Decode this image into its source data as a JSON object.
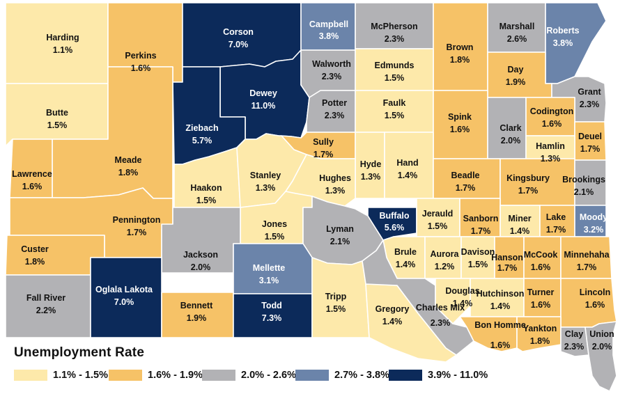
{
  "legend": {
    "title": "Unemployment Rate",
    "bins": [
      {
        "label": "1.1% - 1.5%",
        "color": "#fde9aa"
      },
      {
        "label": "1.6% - 1.9%",
        "color": "#f6c267"
      },
      {
        "label": "2.0% - 2.6%",
        "color": "#b2b2b5"
      },
      {
        "label": "2.7% - 3.8%",
        "color": "#6b84aa"
      },
      {
        "label": "3.9% - 11.0%",
        "color": "#0c2a5a"
      }
    ]
  },
  "counties": [
    {
      "id": "harding",
      "name": "Harding",
      "rate": "1.1%",
      "bin": 0
    },
    {
      "id": "perkins",
      "name": "Perkins",
      "rate": "1.6%",
      "bin": 1
    },
    {
      "id": "corson",
      "name": "Corson",
      "rate": "7.0%",
      "bin": 4
    },
    {
      "id": "campbell",
      "name": "Campbell",
      "rate": "3.8%",
      "bin": 3
    },
    {
      "id": "mcpherson",
      "name": "McPherson",
      "rate": "2.3%",
      "bin": 2
    },
    {
      "id": "brown",
      "name": "Brown",
      "rate": "1.8%",
      "bin": 1
    },
    {
      "id": "marshall",
      "name": "Marshall",
      "rate": "2.6%",
      "bin": 2
    },
    {
      "id": "roberts",
      "name": "Roberts",
      "rate": "3.8%",
      "bin": 3
    },
    {
      "id": "butte",
      "name": "Butte",
      "rate": "1.5%",
      "bin": 0
    },
    {
      "id": "dewey",
      "name": "Dewey",
      "rate": "11.0%",
      "bin": 4
    },
    {
      "id": "ziebach",
      "name": "Ziebach",
      "rate": "5.7%",
      "bin": 4
    },
    {
      "id": "walworth",
      "name": "Walworth",
      "rate": "2.3%",
      "bin": 2
    },
    {
      "id": "edmunds",
      "name": "Edmunds",
      "rate": "1.5%",
      "bin": 0
    },
    {
      "id": "day",
      "name": "Day",
      "rate": "1.9%",
      "bin": 1
    },
    {
      "id": "grant",
      "name": "Grant",
      "rate": "2.3%",
      "bin": 2
    },
    {
      "id": "potter",
      "name": "Potter",
      "rate": "2.3%",
      "bin": 2
    },
    {
      "id": "faulk",
      "name": "Faulk",
      "rate": "1.5%",
      "bin": 0
    },
    {
      "id": "spink",
      "name": "Spink",
      "rate": "1.6%",
      "bin": 1
    },
    {
      "id": "clark",
      "name": "Clark",
      "rate": "2.0%",
      "bin": 2
    },
    {
      "id": "codington",
      "name": "Codington",
      "rate": "1.6%",
      "bin": 1
    },
    {
      "id": "deuel",
      "name": "Deuel",
      "rate": "1.7%",
      "bin": 1
    },
    {
      "id": "hamlin",
      "name": "Hamlin",
      "rate": "1.3%",
      "bin": 0
    },
    {
      "id": "meade",
      "name": "Meade",
      "rate": "1.8%",
      "bin": 1
    },
    {
      "id": "lawrence",
      "name": "Lawrence",
      "rate": "1.6%",
      "bin": 1
    },
    {
      "id": "sully",
      "name": "Sully",
      "rate": "1.7%",
      "bin": 1
    },
    {
      "id": "hyde",
      "name": "Hyde",
      "rate": "1.3%",
      "bin": 0
    },
    {
      "id": "hand",
      "name": "Hand",
      "rate": "1.4%",
      "bin": 0
    },
    {
      "id": "beadle",
      "name": "Beadle",
      "rate": "1.7%",
      "bin": 1
    },
    {
      "id": "kingsbury",
      "name": "Kingsbury",
      "rate": "1.7%",
      "bin": 1
    },
    {
      "id": "brookings",
      "name": "Brookings",
      "rate": "2.1%",
      "bin": 2
    },
    {
      "id": "haakon",
      "name": "Haakon",
      "rate": "1.5%",
      "bin": 0
    },
    {
      "id": "stanley",
      "name": "Stanley",
      "rate": "1.3%",
      "bin": 0
    },
    {
      "id": "hughes",
      "name": "Hughes",
      "rate": "1.3%",
      "bin": 0
    },
    {
      "id": "pennington",
      "name": "Pennington",
      "rate": "1.7%",
      "bin": 1
    },
    {
      "id": "jones",
      "name": "Jones",
      "rate": "1.5%",
      "bin": 0
    },
    {
      "id": "lyman",
      "name": "Lyman",
      "rate": "2.1%",
      "bin": 2
    },
    {
      "id": "buffalo",
      "name": "Buffalo",
      "rate": "5.6%",
      "bin": 4
    },
    {
      "id": "jerauld",
      "name": "Jerauld",
      "rate": "1.5%",
      "bin": 0
    },
    {
      "id": "sanborn",
      "name": "Sanborn",
      "rate": "1.7%",
      "bin": 1
    },
    {
      "id": "miner",
      "name": "Miner",
      "rate": "1.4%",
      "bin": 0
    },
    {
      "id": "lake",
      "name": "Lake",
      "rate": "1.7%",
      "bin": 1
    },
    {
      "id": "moody",
      "name": "Moody",
      "rate": "3.2%",
      "bin": 3
    },
    {
      "id": "custer",
      "name": "Custer",
      "rate": "1.8%",
      "bin": 1
    },
    {
      "id": "jackson",
      "name": "Jackson",
      "rate": "2.0%",
      "bin": 2
    },
    {
      "id": "mellette",
      "name": "Mellette",
      "rate": "3.1%",
      "bin": 3
    },
    {
      "id": "brule",
      "name": "Brule",
      "rate": "1.4%",
      "bin": 0
    },
    {
      "id": "aurora",
      "name": "Aurora",
      "rate": "1.2%",
      "bin": 0
    },
    {
      "id": "davison",
      "name": "Davison",
      "rate": "1.5%",
      "bin": 0
    },
    {
      "id": "hanson",
      "name": "Hanson",
      "rate": "1.7%",
      "bin": 1
    },
    {
      "id": "mccook",
      "name": "McCook",
      "rate": "1.6%",
      "bin": 1
    },
    {
      "id": "minnehaha",
      "name": "Minnehaha",
      "rate": "1.7%",
      "bin": 1
    },
    {
      "id": "fall-river",
      "name": "Fall River",
      "rate": "2.2%",
      "bin": 2
    },
    {
      "id": "oglala-lakota",
      "name": "Oglala Lakota",
      "rate": "7.0%",
      "bin": 4
    },
    {
      "id": "bennett",
      "name": "Bennett",
      "rate": "1.9%",
      "bin": 1
    },
    {
      "id": "todd",
      "name": "Todd",
      "rate": "7.3%",
      "bin": 4
    },
    {
      "id": "tripp",
      "name": "Tripp",
      "rate": "1.5%",
      "bin": 0
    },
    {
      "id": "gregory",
      "name": "Gregory",
      "rate": "1.4%",
      "bin": 0
    },
    {
      "id": "charles-mix",
      "name": "Charles Mix",
      "rate": "2.3%",
      "bin": 2
    },
    {
      "id": "douglas",
      "name": "Douglas",
      "rate": "1.4%",
      "bin": 0
    },
    {
      "id": "hutchinson",
      "name": "Hutchinson",
      "rate": "1.4%",
      "bin": 0
    },
    {
      "id": "turner",
      "name": "Turner",
      "rate": "1.6%",
      "bin": 1
    },
    {
      "id": "lincoln",
      "name": "Lincoln",
      "rate": "1.6%",
      "bin": 1
    },
    {
      "id": "bon-homme",
      "name": "Bon Homme",
      "rate": "1.6%",
      "bin": 1
    },
    {
      "id": "yankton",
      "name": "Yankton",
      "rate": "1.8%",
      "bin": 1
    },
    {
      "id": "clay",
      "name": "Clay",
      "rate": "2.3%",
      "bin": 2
    },
    {
      "id": "union",
      "name": "Union",
      "rate": "2.0%",
      "bin": 2
    }
  ]
}
